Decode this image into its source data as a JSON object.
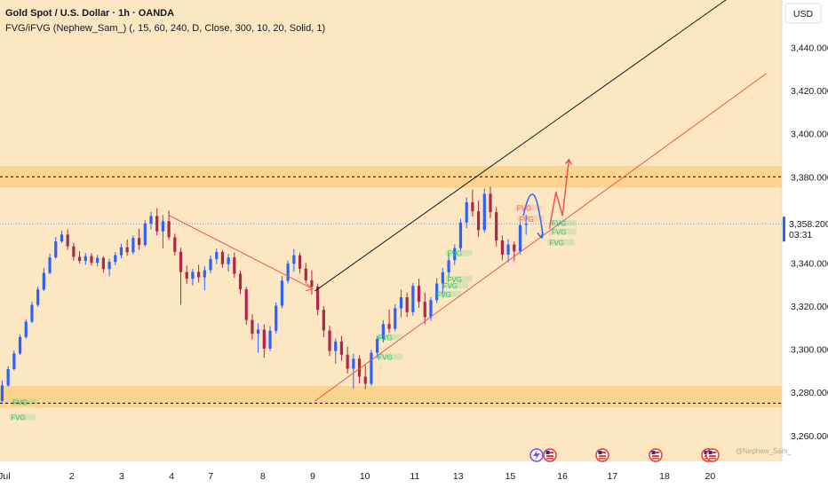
{
  "header": {
    "title": "Gold Spot / U.S. Dollar · 1h · OANDA",
    "indicator": "FVG/iFVG (Nephew_Sam_) (, 15, 60, 240, D, Close, 300, 10, 20, Solid, 1)"
  },
  "currency_button": "USD",
  "watermark": "@Nephew_Sam_",
  "colors": {
    "background": "#fde7c2",
    "bull": "#2962ff",
    "bear": "#b2244a",
    "zone": "#fcc86a",
    "fvg_green": "#20c26a",
    "fvg_red": "#f35b6e",
    "trend_red": "#ef5350",
    "price_tag": "#2962ff"
  },
  "chart_data": {
    "type": "candlestick",
    "symbol": "XAUUSD",
    "timeframe": "1h",
    "ylim": [
      3248,
      3462
    ],
    "xlim": [
      0,
      36
    ],
    "y_ticks": [
      {
        "value": 3440,
        "label": "3,440.000"
      },
      {
        "value": 3420,
        "label": "3,420.000"
      },
      {
        "value": 3400,
        "label": "3,400.000"
      },
      {
        "value": 3380,
        "label": "3,380.000"
      },
      {
        "value": 3340,
        "label": "3,340.000"
      },
      {
        "value": 3320,
        "label": "3,320.000"
      },
      {
        "value": 3300,
        "label": "3,300.000"
      },
      {
        "value": 3280,
        "label": "3,280.000"
      },
      {
        "value": 3260,
        "label": "3,260.000"
      }
    ],
    "x_ticks": [
      {
        "label": "Jul",
        "x": 0.2
      },
      {
        "label": "2",
        "x": 3.3
      },
      {
        "label": "3",
        "x": 5.6
      },
      {
        "label": "4",
        "x": 7.9
      },
      {
        "label": "7",
        "x": 9.7
      },
      {
        "label": "8",
        "x": 12.1
      },
      {
        "label": "9",
        "x": 14.4
      },
      {
        "label": "10",
        "x": 16.8
      },
      {
        "label": "11",
        "x": 19.1
      },
      {
        "label": "13",
        "x": 21.1
      },
      {
        "label": "15",
        "x": 23.5
      },
      {
        "label": "16",
        "x": 25.9
      },
      {
        "label": "17",
        "x": 28.2
      },
      {
        "label": "18",
        "x": 30.6
      },
      {
        "label": "20",
        "x": 32.7
      }
    ],
    "last_price": {
      "value": 3358.2,
      "label": "3,358.200",
      "countdown": "03:31"
    },
    "key_levels": [
      3380,
      3275
    ],
    "zones": [
      {
        "from": 3375,
        "to": 3385
      },
      {
        "from": 3273,
        "to": 3283
      }
    ],
    "trendlines": [
      {
        "name": "upper-channel",
        "color": "black",
        "points": [
          [
            14.5,
            3327
          ],
          [
            34.4,
            3469
          ]
        ]
      },
      {
        "name": "lower-channel",
        "color": "red",
        "points": [
          [
            14.5,
            3276
          ],
          [
            35.3,
            3428
          ]
        ]
      },
      {
        "name": "descending",
        "color": "red",
        "points": [
          [
            7.8,
            3362
          ],
          [
            14.4,
            3328
          ]
        ]
      }
    ],
    "fvg_labels": [
      {
        "label": "FVG",
        "x": 0.6,
        "y": 3275,
        "color": "green"
      },
      {
        "label": "FVG",
        "x": 0.5,
        "y": 3268,
        "color": "green"
      },
      {
        "label": "FVG",
        "x": 17.4,
        "y": 3305,
        "color": "green"
      },
      {
        "label": "FVG",
        "x": 17.4,
        "y": 3296,
        "color": "green"
      },
      {
        "label": "FVG",
        "x": 20.1,
        "y": 3325,
        "color": "green"
      },
      {
        "label": "FVG",
        "x": 20.4,
        "y": 3329,
        "color": "green"
      },
      {
        "label": "FVG",
        "x": 20.6,
        "y": 3344,
        "color": "green"
      },
      {
        "label": "FVG",
        "x": 20.6,
        "y": 3332,
        "color": "green"
      },
      {
        "label": "FVG",
        "x": 23.8,
        "y": 3365,
        "color": "red"
      },
      {
        "label": "FVG",
        "x": 23.9,
        "y": 3360,
        "color": "red"
      },
      {
        "label": "FVG",
        "x": 25.4,
        "y": 3358,
        "color": "green"
      },
      {
        "label": "FVG",
        "x": 25.4,
        "y": 3354,
        "color": "green"
      },
      {
        "label": "FVG",
        "x": 25.3,
        "y": 3349,
        "color": "green"
      }
    ],
    "projections": [
      {
        "name": "blue-arc",
        "color": "blue",
        "points": [
          [
            24.1,
            3362
          ],
          [
            24.5,
            3372
          ],
          [
            24.8,
            3365
          ],
          [
            24.9,
            3352
          ]
        ]
      },
      {
        "name": "red-zigzag",
        "color": "red",
        "points": [
          [
            25.3,
            3356
          ],
          [
            25.6,
            3373
          ],
          [
            25.9,
            3362
          ],
          [
            26.2,
            3388
          ]
        ]
      }
    ],
    "candles": [
      {
        "o": 3276.0,
        "h": 3285.5,
        "l": 3275.5,
        "c": 3283.2
      },
      {
        "o": 3283.2,
        "h": 3292.1,
        "l": 3282.7,
        "c": 3290.8
      },
      {
        "o": 3290.8,
        "h": 3299.4,
        "l": 3290.2,
        "c": 3298.1
      },
      {
        "o": 3298.1,
        "h": 3306.9,
        "l": 3297.4,
        "c": 3305.7
      },
      {
        "o": 3305.7,
        "h": 3314.0,
        "l": 3304.9,
        "c": 3312.8
      },
      {
        "o": 3312.8,
        "h": 3322.2,
        "l": 3312.1,
        "c": 3320.6
      },
      {
        "o": 3320.6,
        "h": 3329.0,
        "l": 3319.7,
        "c": 3327.7
      },
      {
        "o": 3327.7,
        "h": 3337.6,
        "l": 3327.0,
        "c": 3335.4
      },
      {
        "o": 3335.4,
        "h": 3344.3,
        "l": 3334.8,
        "c": 3342.6
      },
      {
        "o": 3342.6,
        "h": 3352.1,
        "l": 3342.0,
        "c": 3350.0
      },
      {
        "o": 3350.0,
        "h": 3355.0,
        "l": 3349.3,
        "c": 3353.2
      },
      {
        "o": 3353.2,
        "h": 3355.6,
        "l": 3346.1,
        "c": 3347.8
      },
      {
        "o": 3347.8,
        "h": 3349.4,
        "l": 3341.2,
        "c": 3342.9
      },
      {
        "o": 3342.9,
        "h": 3345.5,
        "l": 3339.8,
        "c": 3341.0
      },
      {
        "o": 3341.0,
        "h": 3344.7,
        "l": 3339.3,
        "c": 3343.2
      },
      {
        "o": 3343.2,
        "h": 3344.6,
        "l": 3338.9,
        "c": 3340.1
      },
      {
        "o": 3340.1,
        "h": 3343.8,
        "l": 3338.4,
        "c": 3342.4
      },
      {
        "o": 3342.4,
        "h": 3343.2,
        "l": 3335.6,
        "c": 3337.2
      },
      {
        "o": 3337.2,
        "h": 3342.0,
        "l": 3333.8,
        "c": 3340.5
      },
      {
        "o": 3340.5,
        "h": 3345.1,
        "l": 3339.0,
        "c": 3343.6
      },
      {
        "o": 3343.6,
        "h": 3348.9,
        "l": 3342.2,
        "c": 3347.3
      },
      {
        "o": 3347.3,
        "h": 3351.0,
        "l": 3343.4,
        "c": 3345.0
      },
      {
        "o": 3345.0,
        "h": 3352.8,
        "l": 3344.1,
        "c": 3351.6
      },
      {
        "o": 3351.6,
        "h": 3356.0,
        "l": 3346.2,
        "c": 3348.4
      },
      {
        "o": 3348.4,
        "h": 3359.9,
        "l": 3347.5,
        "c": 3358.3
      },
      {
        "o": 3358.3,
        "h": 3363.7,
        "l": 3355.6,
        "c": 3361.8
      },
      {
        "o": 3361.8,
        "h": 3365.4,
        "l": 3352.9,
        "c": 3354.7
      },
      {
        "o": 3354.7,
        "h": 3362.3,
        "l": 3346.8,
        "c": 3359.4
      },
      {
        "o": 3359.4,
        "h": 3364.2,
        "l": 3350.7,
        "c": 3352.0
      },
      {
        "o": 3352.0,
        "h": 3353.6,
        "l": 3343.5,
        "c": 3345.2
      },
      {
        "o": 3345.2,
        "h": 3347.1,
        "l": 3320.6,
        "c": 3335.8
      },
      {
        "o": 3335.8,
        "h": 3338.8,
        "l": 3330.2,
        "c": 3332.7
      },
      {
        "o": 3332.7,
        "h": 3337.4,
        "l": 3329.6,
        "c": 3335.9
      },
      {
        "o": 3335.9,
        "h": 3339.2,
        "l": 3331.0,
        "c": 3333.4
      },
      {
        "o": 3333.4,
        "h": 3338.6,
        "l": 3327.4,
        "c": 3336.7
      },
      {
        "o": 3336.7,
        "h": 3343.5,
        "l": 3335.2,
        "c": 3341.9
      },
      {
        "o": 3341.9,
        "h": 3346.8,
        "l": 3339.6,
        "c": 3345.1
      },
      {
        "o": 3345.1,
        "h": 3346.0,
        "l": 3337.8,
        "c": 3339.5
      },
      {
        "o": 3339.5,
        "h": 3344.3,
        "l": 3336.1,
        "c": 3342.6
      },
      {
        "o": 3342.6,
        "h": 3344.9,
        "l": 3333.2,
        "c": 3335.0
      },
      {
        "o": 3335.0,
        "h": 3336.4,
        "l": 3325.7,
        "c": 3327.8
      },
      {
        "o": 3327.8,
        "h": 3329.0,
        "l": 3311.4,
        "c": 3313.6
      },
      {
        "o": 3313.6,
        "h": 3316.2,
        "l": 3304.5,
        "c": 3307.2
      },
      {
        "o": 3307.2,
        "h": 3312.0,
        "l": 3298.4,
        "c": 3309.1
      },
      {
        "o": 3309.1,
        "h": 3311.5,
        "l": 3296.0,
        "c": 3300.3
      },
      {
        "o": 3300.3,
        "h": 3310.8,
        "l": 3299.1,
        "c": 3308.6
      },
      {
        "o": 3308.6,
        "h": 3321.7,
        "l": 3307.3,
        "c": 3320.2
      },
      {
        "o": 3320.2,
        "h": 3333.9,
        "l": 3319.0,
        "c": 3331.8
      },
      {
        "o": 3331.8,
        "h": 3341.2,
        "l": 3330.5,
        "c": 3339.7
      },
      {
        "o": 3339.7,
        "h": 3346.5,
        "l": 3336.0,
        "c": 3343.6
      },
      {
        "o": 3343.6,
        "h": 3344.8,
        "l": 3335.2,
        "c": 3337.4
      },
      {
        "o": 3337.4,
        "h": 3340.1,
        "l": 3330.6,
        "c": 3332.0
      },
      {
        "o": 3332.0,
        "h": 3336.7,
        "l": 3325.4,
        "c": 3329.1
      },
      {
        "o": 3329.1,
        "h": 3330.5,
        "l": 3315.8,
        "c": 3318.3
      },
      {
        "o": 3318.3,
        "h": 3320.0,
        "l": 3305.6,
        "c": 3308.7
      },
      {
        "o": 3308.7,
        "h": 3310.9,
        "l": 3296.9,
        "c": 3299.2
      },
      {
        "o": 3299.2,
        "h": 3305.0,
        "l": 3293.3,
        "c": 3303.6
      },
      {
        "o": 3303.6,
        "h": 3306.2,
        "l": 3294.7,
        "c": 3297.5
      },
      {
        "o": 3297.5,
        "h": 3301.3,
        "l": 3288.8,
        "c": 3291.0
      },
      {
        "o": 3291.0,
        "h": 3297.9,
        "l": 3281.8,
        "c": 3295.6
      },
      {
        "o": 3295.6,
        "h": 3297.2,
        "l": 3284.1,
        "c": 3287.3
      },
      {
        "o": 3287.3,
        "h": 3292.6,
        "l": 3281.5,
        "c": 3284.0
      },
      {
        "o": 3284.0,
        "h": 3299.8,
        "l": 3283.1,
        "c": 3298.4
      },
      {
        "o": 3298.4,
        "h": 3306.1,
        "l": 3296.0,
        "c": 3304.8
      },
      {
        "o": 3304.8,
        "h": 3313.5,
        "l": 3303.2,
        "c": 3311.7
      },
      {
        "o": 3311.7,
        "h": 3318.4,
        "l": 3307.6,
        "c": 3309.5
      },
      {
        "o": 3309.5,
        "h": 3320.9,
        "l": 3308.3,
        "c": 3319.0
      },
      {
        "o": 3319.0,
        "h": 3327.6,
        "l": 3314.9,
        "c": 3324.1
      },
      {
        "o": 3324.1,
        "h": 3326.3,
        "l": 3315.0,
        "c": 3317.2
      },
      {
        "o": 3317.2,
        "h": 3330.8,
        "l": 3315.6,
        "c": 3329.4
      },
      {
        "o": 3329.4,
        "h": 3332.7,
        "l": 3319.2,
        "c": 3322.0
      },
      {
        "o": 3322.0,
        "h": 3326.4,
        "l": 3311.6,
        "c": 3314.9
      },
      {
        "o": 3314.9,
        "h": 3324.2,
        "l": 3313.2,
        "c": 3322.8
      },
      {
        "o": 3322.8,
        "h": 3333.0,
        "l": 3321.4,
        "c": 3330.5
      },
      {
        "o": 3330.5,
        "h": 3337.8,
        "l": 3325.9,
        "c": 3335.7
      },
      {
        "o": 3335.7,
        "h": 3343.9,
        "l": 3333.4,
        "c": 3341.3
      },
      {
        "o": 3341.3,
        "h": 3348.6,
        "l": 3339.0,
        "c": 3346.9
      },
      {
        "o": 3346.9,
        "h": 3360.5,
        "l": 3345.7,
        "c": 3358.8
      },
      {
        "o": 3358.8,
        "h": 3370.4,
        "l": 3356.1,
        "c": 3368.2
      },
      {
        "o": 3368.2,
        "h": 3374.1,
        "l": 3361.6,
        "c": 3364.0
      },
      {
        "o": 3364.0,
        "h": 3368.9,
        "l": 3352.2,
        "c": 3355.3
      },
      {
        "o": 3355.3,
        "h": 3374.6,
        "l": 3354.0,
        "c": 3372.1
      },
      {
        "o": 3372.1,
        "h": 3375.4,
        "l": 3360.8,
        "c": 3363.6
      },
      {
        "o": 3363.6,
        "h": 3366.0,
        "l": 3347.7,
        "c": 3350.5
      },
      {
        "o": 3350.5,
        "h": 3352.8,
        "l": 3341.2,
        "c": 3343.9
      },
      {
        "o": 3343.9,
        "h": 3351.1,
        "l": 3340.3,
        "c": 3348.6
      },
      {
        "o": 3348.6,
        "h": 3350.0,
        "l": 3340.8,
        "c": 3345.4
      },
      {
        "o": 3345.4,
        "h": 3359.0,
        "l": 3344.2,
        "c": 3357.6
      },
      {
        "o": 3357.6,
        "h": 3362.4,
        "l": 3353.1,
        "c": 3358.2
      }
    ]
  }
}
